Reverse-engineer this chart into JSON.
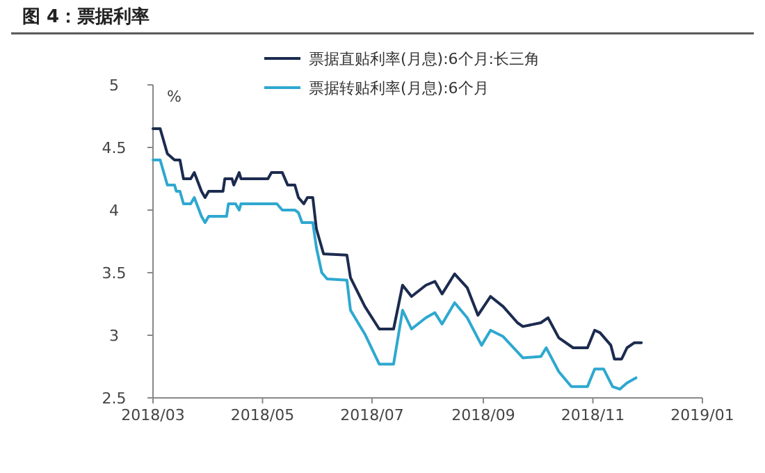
{
  "chart_data": {
    "type": "line",
    "title": "图 4：票据利率",
    "ylabel": "%",
    "xlim": [
      "2018-03-01",
      "2019-01-01"
    ],
    "xticks": [
      {
        "value": "2018-03",
        "label": "2018/03"
      },
      {
        "value": "2018-05",
        "label": "2018/05"
      },
      {
        "value": "2018-07",
        "label": "2018/07"
      },
      {
        "value": "2018-09",
        "label": "2018/09"
      },
      {
        "value": "2018-11",
        "label": "2018/11"
      },
      {
        "value": "2019-01",
        "label": "2019/01"
      }
    ],
    "ylim": [
      2.5,
      5
    ],
    "yticks": [
      2.5,
      3,
      3.5,
      4,
      4.5,
      5
    ],
    "grid": false,
    "legend": "top",
    "marker": "none",
    "line_style": "solid",
    "series": [
      {
        "name": "票据直贴利率(月息):6个月:长三角",
        "color": "#1c2b4f",
        "x": [
          "2018-03-01",
          "2018-03-05",
          "2018-03-09",
          "2018-03-13",
          "2018-03-16",
          "2018-03-18",
          "2018-03-22",
          "2018-03-24",
          "2018-03-28",
          "2018-03-30",
          "2018-04-01",
          "2018-04-09",
          "2018-04-10",
          "2018-04-14",
          "2018-04-15",
          "2018-04-18",
          "2018-04-19",
          "2018-05-04",
          "2018-05-06",
          "2018-05-12",
          "2018-05-15",
          "2018-05-19",
          "2018-05-21",
          "2018-05-24",
          "2018-05-26",
          "2018-05-29",
          "2018-05-31",
          "2018-06-04",
          "2018-06-17",
          "2018-06-19",
          "2018-06-27",
          "2018-07-05",
          "2018-07-13",
          "2018-07-18",
          "2018-07-23",
          "2018-07-31",
          "2018-08-05",
          "2018-08-09",
          "2018-08-16",
          "2018-08-23",
          "2018-08-29",
          "2018-09-05",
          "2018-09-12",
          "2018-09-20",
          "2018-09-23",
          "2018-10-03",
          "2018-10-07",
          "2018-10-13",
          "2018-10-21",
          "2018-10-29",
          "2018-11-02",
          "2018-11-05",
          "2018-11-11",
          "2018-11-13",
          "2018-11-17",
          "2018-11-20",
          "2018-11-24",
          "2018-11-28"
        ],
        "values": [
          4.65,
          4.65,
          4.45,
          4.4,
          4.4,
          4.25,
          4.25,
          4.3,
          4.15,
          4.1,
          4.15,
          4.15,
          4.25,
          4.25,
          4.2,
          4.3,
          4.25,
          4.25,
          4.3,
          4.3,
          4.2,
          4.2,
          4.1,
          4.05,
          4.1,
          4.1,
          3.85,
          3.65,
          3.64,
          3.46,
          3.23,
          3.05,
          3.05,
          3.4,
          3.31,
          3.4,
          3.43,
          3.33,
          3.49,
          3.38,
          3.16,
          3.31,
          3.23,
          3.1,
          3.07,
          3.1,
          3.14,
          2.98,
          2.9,
          2.9,
          3.04,
          3.02,
          2.92,
          2.81,
          2.81,
          2.9,
          2.94,
          2.94
        ]
      },
      {
        "name": "票据转贴利率(月息):6个月",
        "color": "#2ea8d0",
        "x": [
          "2018-03-01",
          "2018-03-05",
          "2018-03-06",
          "2018-03-09",
          "2018-03-13",
          "2018-03-14",
          "2018-03-16",
          "2018-03-18",
          "2018-03-22",
          "2018-03-24",
          "2018-03-28",
          "2018-03-30",
          "2018-04-01",
          "2018-04-11",
          "2018-04-12",
          "2018-04-16",
          "2018-04-18",
          "2018-04-19",
          "2018-05-09",
          "2018-05-12",
          "2018-05-19",
          "2018-05-21",
          "2018-05-23",
          "2018-05-29",
          "2018-05-31",
          "2018-06-03",
          "2018-06-06",
          "2018-06-17",
          "2018-06-19",
          "2018-06-27",
          "2018-07-05",
          "2018-07-13",
          "2018-07-18",
          "2018-07-23",
          "2018-07-31",
          "2018-08-05",
          "2018-08-09",
          "2018-08-16",
          "2018-08-23",
          "2018-08-31",
          "2018-09-05",
          "2018-09-12",
          "2018-09-23",
          "2018-10-03",
          "2018-10-06",
          "2018-10-13",
          "2018-10-20",
          "2018-10-29",
          "2018-11-02",
          "2018-11-07",
          "2018-11-12",
          "2018-11-16",
          "2018-11-20",
          "2018-11-25"
        ],
        "values": [
          4.4,
          4.4,
          4.35,
          4.2,
          4.2,
          4.15,
          4.15,
          4.05,
          4.05,
          4.1,
          3.95,
          3.9,
          3.95,
          3.95,
          4.05,
          4.05,
          4.0,
          4.05,
          4.05,
          4.0,
          4.0,
          3.98,
          3.9,
          3.9,
          3.7,
          3.5,
          3.45,
          3.44,
          3.2,
          3.01,
          2.77,
          2.77,
          3.2,
          3.05,
          3.14,
          3.18,
          3.09,
          3.26,
          3.14,
          2.92,
          3.04,
          2.99,
          2.82,
          2.83,
          2.9,
          2.71,
          2.59,
          2.59,
          2.73,
          2.73,
          2.59,
          2.57,
          2.62,
          2.66
        ]
      }
    ]
  }
}
